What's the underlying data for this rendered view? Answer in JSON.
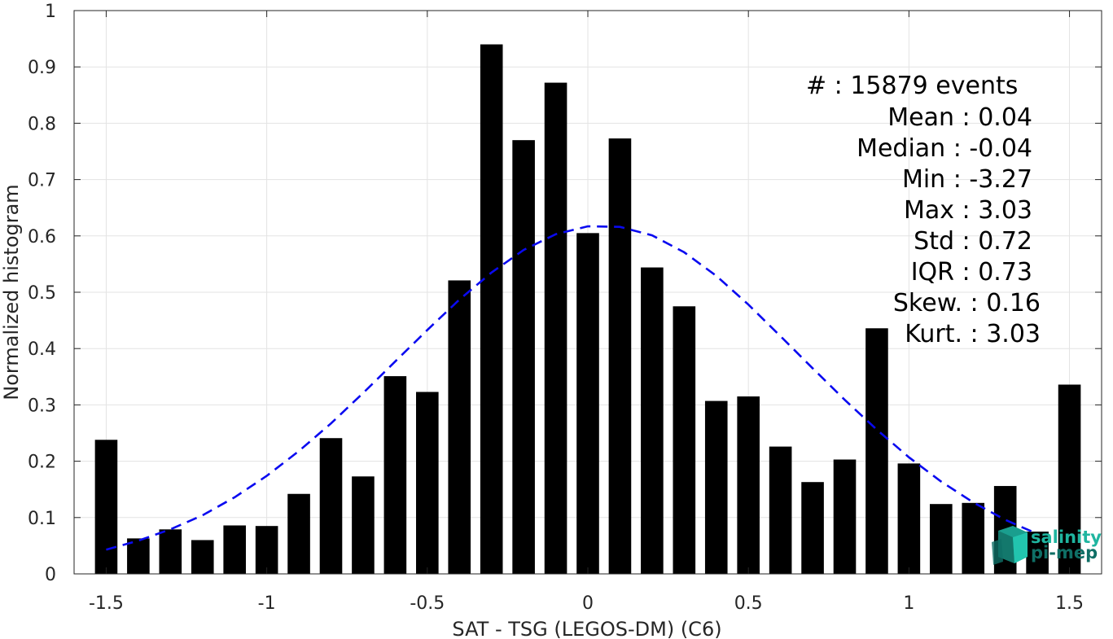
{
  "chart_data": {
    "type": "bar",
    "xlabel": "SAT - TSG (LEGOS-DM) (C6)",
    "ylabel": "Normalized histogram",
    "xlim": [
      -1.6,
      1.6
    ],
    "ylim": [
      0,
      1
    ],
    "grid": true,
    "x_ticks": [
      -1.5,
      -1,
      -0.5,
      0,
      0.5,
      1,
      1.5
    ],
    "x_tick_labels": [
      "-1.5",
      "-1",
      "-0.5",
      "0",
      "0.5",
      "1",
      "1.5"
    ],
    "y_ticks": [
      0,
      0.1,
      0.2,
      0.3,
      0.4,
      0.5,
      0.6,
      0.7,
      0.8,
      0.9,
      1
    ],
    "y_tick_labels": [
      "0",
      "0.1",
      "0.2",
      "0.3",
      "0.4",
      "0.5",
      "0.6",
      "0.7",
      "0.8",
      "0.9",
      "1"
    ],
    "bar_color": "#000000",
    "bars": {
      "x": [
        -1.5,
        -1.4,
        -1.3,
        -1.2,
        -1.1,
        -1.0,
        -0.9,
        -0.8,
        -0.7,
        -0.6,
        -0.5,
        -0.4,
        -0.3,
        -0.2,
        -0.1,
        0.0,
        0.1,
        0.2,
        0.3,
        0.4,
        0.5,
        0.6,
        0.7,
        0.8,
        0.9,
        1.0,
        1.1,
        1.2,
        1.3,
        1.4,
        1.5
      ],
      "values": [
        0.238,
        0.063,
        0.079,
        0.06,
        0.086,
        0.085,
        0.142,
        0.241,
        0.173,
        0.351,
        0.323,
        0.521,
        0.94,
        0.77,
        0.872,
        0.605,
        0.773,
        0.544,
        0.475,
        0.307,
        0.315,
        0.226,
        0.163,
        0.203,
        0.436,
        0.196,
        0.124,
        0.126,
        0.156,
        0.075,
        0.336
      ]
    },
    "fit_curve": {
      "style": "dashed",
      "color": "#0a0af0",
      "x": [
        -1.5,
        -1.4,
        -1.3,
        -1.2,
        -1.1,
        -1.0,
        -0.9,
        -0.8,
        -0.7,
        -0.6,
        -0.5,
        -0.4,
        -0.3,
        -0.2,
        -0.1,
        0.0,
        0.1,
        0.2,
        0.3,
        0.4,
        0.5,
        0.6,
        0.7,
        0.8,
        0.9,
        1.0,
        1.1,
        1.2,
        1.3,
        1.4
      ],
      "y": [
        0.043,
        0.059,
        0.079,
        0.104,
        0.136,
        0.174,
        0.218,
        0.267,
        0.321,
        0.377,
        0.433,
        0.487,
        0.535,
        0.575,
        0.603,
        0.617,
        0.616,
        0.601,
        0.571,
        0.529,
        0.478,
        0.422,
        0.365,
        0.309,
        0.256,
        0.207,
        0.164,
        0.127,
        0.096,
        0.071
      ]
    }
  },
  "stats": {
    "lines": [
      "#  : 15879 events",
      "Mean : 0.04",
      "Median : -0.04",
      "Min : -3.27",
      "Max : 3.03",
      "Std : 0.72",
      "IQR : 0.73",
      "Skew. : 0.16",
      "Kurt. : 3.03"
    ]
  },
  "logo": {
    "line1": "salinity",
    "line2": "pi-mep",
    "color_line1": "#1fb5a0",
    "color_line2": "#0f6f66"
  }
}
